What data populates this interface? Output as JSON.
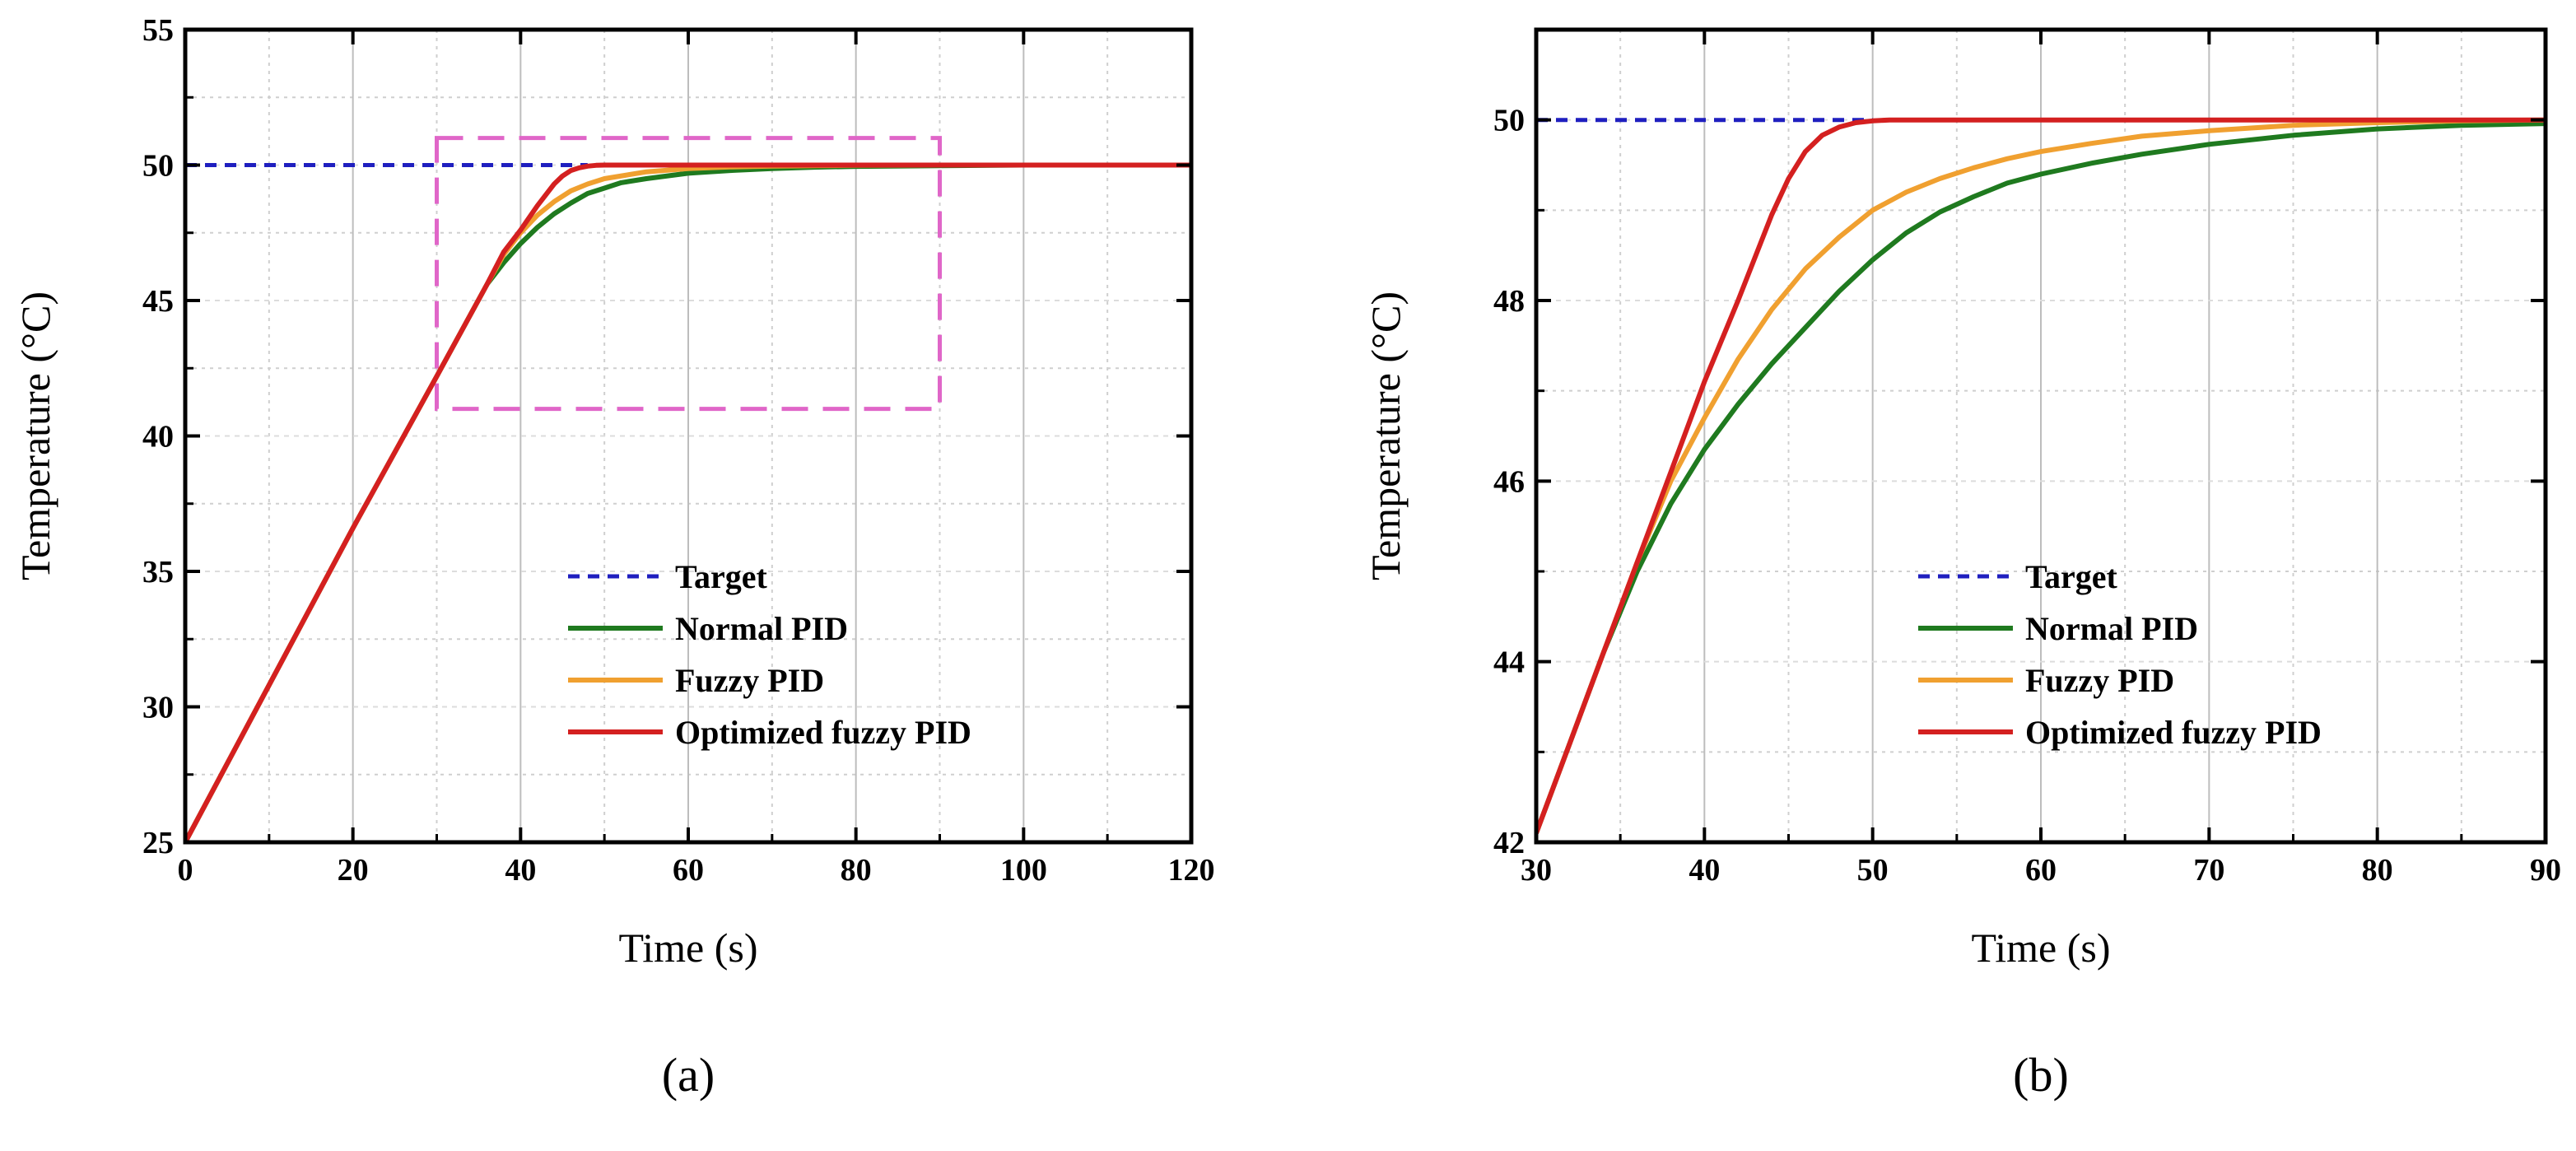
{
  "chart_data": [
    {
      "type": "line",
      "panel_label": "(a)",
      "xlabel": "Time (s)",
      "ylabel": "Temperature (°C)",
      "xlim": [
        0,
        120
      ],
      "ylim": [
        25,
        55
      ],
      "xticks": [
        0,
        20,
        40,
        60,
        80,
        100,
        120
      ],
      "yticks": [
        25,
        30,
        35,
        40,
        45,
        50,
        55
      ],
      "grid": true,
      "legend_position": "lower-right",
      "zoom_box": {
        "x": [
          30,
          90
        ],
        "y": [
          41,
          51
        ],
        "color": "#e066c8"
      },
      "series": [
        {
          "name": "Target",
          "color": "#1f1fbf",
          "style": "dashed",
          "x": [
            0,
            48
          ],
          "y": [
            50,
            50
          ]
        },
        {
          "name": "Normal PID",
          "color": "#1f7a1f",
          "style": "solid",
          "x": [
            0,
            10,
            20,
            30,
            36,
            38,
            40,
            42,
            44,
            46,
            48,
            50,
            52,
            55,
            60,
            65,
            70,
            75,
            80,
            90,
            100,
            120
          ],
          "y": [
            25,
            30.8,
            36.6,
            42.2,
            45.6,
            46.4,
            47.1,
            47.7,
            48.2,
            48.6,
            48.95,
            49.15,
            49.35,
            49.5,
            49.7,
            49.8,
            49.87,
            49.92,
            49.95,
            49.98,
            50.0,
            50.0
          ]
        },
        {
          "name": "Fuzzy PID",
          "color": "#f0a030",
          "style": "solid",
          "x": [
            0,
            10,
            20,
            30,
            36,
            38,
            40,
            42,
            44,
            46,
            48,
            50,
            55,
            60,
            65,
            70,
            80,
            90,
            100,
            120
          ],
          "y": [
            25,
            30.8,
            36.6,
            42.2,
            45.6,
            46.7,
            47.5,
            48.15,
            48.65,
            49.05,
            49.3,
            49.5,
            49.75,
            49.87,
            49.93,
            49.96,
            49.99,
            50.0,
            50.0,
            50.0
          ]
        },
        {
          "name": "Optimized fuzzy PID",
          "color": "#d42020",
          "style": "solid",
          "x": [
            0,
            10,
            20,
            30,
            36,
            38,
            40,
            42,
            44,
            45,
            46,
            47,
            48,
            49,
            50,
            52,
            55,
            60,
            80,
            100,
            120
          ],
          "y": [
            25,
            30.8,
            36.6,
            42.2,
            45.6,
            46.8,
            47.6,
            48.5,
            49.3,
            49.6,
            49.8,
            49.9,
            49.96,
            49.99,
            50.0,
            50.0,
            50.0,
            50.0,
            50.0,
            50.0,
            50.0
          ]
        }
      ]
    },
    {
      "type": "line",
      "panel_label": "(b)",
      "xlabel": "Time (s)",
      "ylabel": "Temperature (°C)",
      "xlim": [
        30,
        90
      ],
      "ylim": [
        42,
        51
      ],
      "xticks": [
        30,
        40,
        50,
        60,
        70,
        80,
        90
      ],
      "yticks": [
        42,
        44,
        46,
        48,
        50
      ],
      "grid": true,
      "legend_position": "lower-right",
      "series": [
        {
          "name": "Target",
          "color": "#1f1fbf",
          "style": "dashed",
          "x": [
            30,
            50
          ],
          "y": [
            50,
            50
          ]
        },
        {
          "name": "Normal PID",
          "color": "#1f7a1f",
          "style": "solid",
          "x": [
            30,
            32,
            34,
            36,
            38,
            40,
            42,
            44,
            46,
            48,
            50,
            52,
            54,
            56,
            58,
            60,
            63,
            66,
            70,
            75,
            80,
            85,
            90
          ],
          "y": [
            42.1,
            43.1,
            44.1,
            45.0,
            45.75,
            46.35,
            46.85,
            47.3,
            47.7,
            48.1,
            48.45,
            48.75,
            48.98,
            49.15,
            49.3,
            49.4,
            49.52,
            49.62,
            49.73,
            49.83,
            49.9,
            49.94,
            49.96
          ]
        },
        {
          "name": "Fuzzy PID",
          "color": "#f0a030",
          "style": "solid",
          "x": [
            30,
            32,
            34,
            36,
            38,
            40,
            42,
            44,
            46,
            48,
            50,
            52,
            54,
            56,
            58,
            60,
            63,
            66,
            70,
            75,
            80,
            85,
            90
          ],
          "y": [
            42.1,
            43.1,
            44.1,
            45.1,
            46.0,
            46.7,
            47.35,
            47.9,
            48.35,
            48.7,
            49.0,
            49.2,
            49.35,
            49.47,
            49.57,
            49.65,
            49.74,
            49.82,
            49.88,
            49.94,
            49.97,
            49.99,
            50.0
          ]
        },
        {
          "name": "Optimized fuzzy PID",
          "color": "#d42020",
          "style": "solid",
          "x": [
            30,
            32,
            34,
            36,
            38,
            40,
            42,
            44,
            45,
            46,
            47,
            48,
            49,
            50,
            51,
            52,
            53,
            54,
            60,
            70,
            80,
            90
          ],
          "y": [
            42.1,
            43.1,
            44.1,
            45.1,
            46.1,
            47.1,
            48.0,
            48.95,
            49.35,
            49.65,
            49.83,
            49.92,
            49.97,
            49.99,
            50.0,
            50.0,
            50.0,
            50.0,
            50.0,
            50.0,
            50.0,
            50.0
          ]
        }
      ]
    }
  ]
}
